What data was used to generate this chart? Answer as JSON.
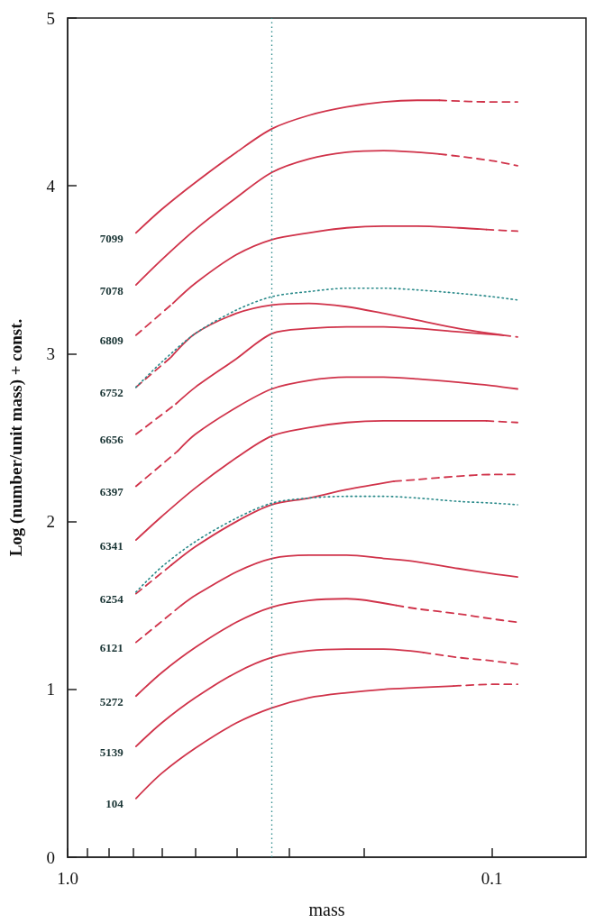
{
  "chart_data": {
    "type": "line",
    "xlabel": "mass",
    "ylabel": "Log (number/unit mass) + const.",
    "xlim": [
      1.0,
      0.06
    ],
    "log": "x",
    "xticks": [
      {
        "value": 1,
        "label": "1.0"
      },
      {
        "value": 0.9,
        "label": null
      },
      {
        "value": 0.8,
        "label": null
      },
      {
        "value": 0.7,
        "label": null
      },
      {
        "value": 0.6,
        "label": null
      },
      {
        "value": 0.5,
        "label": null
      },
      {
        "value": 0.4,
        "label": null
      },
      {
        "value": 0.3,
        "label": null
      },
      {
        "value": 0.2,
        "label": null
      },
      {
        "value": 0.1,
        "label": "0.1"
      }
    ],
    "ylim": [
      0,
      5
    ],
    "yticks": [
      0,
      1,
      2,
      3,
      4,
      5
    ],
    "grid": false,
    "legend": false,
    "marker": "none",
    "ref_lines": [
      {
        "axis": "x",
        "value": 0.33,
        "color": "#2a8a8a",
        "line_style": "dotted"
      }
    ],
    "series": [
      {
        "name": "7099",
        "color": "#d0334a",
        "line_style": "solid",
        "x": [
          0.69,
          0.6,
          0.5,
          0.4,
          0.33,
          0.27,
          0.22,
          0.18,
          0.15,
          0.133
        ],
        "values": [
          3.72,
          3.86,
          4.02,
          4.2,
          4.34,
          4.42,
          4.47,
          4.5,
          4.51,
          4.51
        ]
      },
      {
        "color": "#d0334a",
        "line_style": "dashed",
        "x": [
          0.133,
          0.1,
          0.087
        ],
        "values": [
          4.51,
          4.5,
          4.5
        ]
      },
      {
        "name": "7078",
        "color": "#d0334a",
        "line_style": "solid",
        "x": [
          0.69,
          0.6,
          0.5,
          0.4,
          0.33,
          0.27,
          0.22,
          0.18,
          0.15,
          0.133
        ],
        "values": [
          3.41,
          3.56,
          3.74,
          3.93,
          4.08,
          4.16,
          4.2,
          4.21,
          4.2,
          4.19
        ]
      },
      {
        "color": "#d0334a",
        "line_style": "dashed",
        "x": [
          0.133,
          0.1,
          0.087
        ],
        "values": [
          4.19,
          4.15,
          4.12
        ]
      },
      {
        "name": "6809",
        "color": "#d0334a",
        "line_style": "dashed",
        "x": [
          0.69,
          0.565
        ],
        "values": [
          3.11,
          3.3
        ]
      },
      {
        "color": "#d0334a",
        "line_style": "solid",
        "x": [
          0.565,
          0.5,
          0.4,
          0.33,
          0.27,
          0.22,
          0.18,
          0.15,
          0.12,
          0.103
        ],
        "values": [
          3.3,
          3.42,
          3.59,
          3.68,
          3.72,
          3.75,
          3.76,
          3.76,
          3.75,
          3.74
        ]
      },
      {
        "color": "#d0334a",
        "line_style": "dashed",
        "x": [
          0.103,
          0.087
        ],
        "values": [
          3.74,
          3.73
        ]
      },
      {
        "color": "#2a8a8a",
        "line_style": "dotted",
        "x": [
          0.69,
          0.6,
          0.5,
          0.4,
          0.33,
          0.27,
          0.22,
          0.18,
          0.15,
          0.12,
          0.1,
          0.087
        ],
        "values": [
          2.8,
          2.95,
          3.12,
          3.26,
          3.34,
          3.37,
          3.39,
          3.39,
          3.38,
          3.36,
          3.34,
          3.32
        ]
      },
      {
        "name": "6752",
        "color": "#d0334a",
        "line_style": "dashed",
        "x": [
          0.69,
          0.57
        ],
        "values": [
          2.8,
          2.98
        ]
      },
      {
        "color": "#d0334a",
        "line_style": "solid",
        "x": [
          0.57,
          0.5,
          0.4,
          0.33,
          0.27,
          0.22,
          0.18,
          0.15,
          0.12,
          0.094
        ],
        "values": [
          2.98,
          3.12,
          3.24,
          3.29,
          3.3,
          3.28,
          3.24,
          3.2,
          3.15,
          3.11
        ]
      },
      {
        "color": "#d0334a",
        "line_style": "dashed",
        "x": [
          0.094,
          0.087
        ],
        "values": [
          3.11,
          3.1
        ]
      },
      {
        "name": "6656",
        "color": "#d0334a",
        "line_style": "dashed",
        "x": [
          0.69,
          0.556
        ],
        "values": [
          2.52,
          2.7
        ]
      },
      {
        "color": "#d0334a",
        "line_style": "solid",
        "x": [
          0.556,
          0.5,
          0.4,
          0.33,
          0.27,
          0.22,
          0.18,
          0.15,
          0.12,
          0.094
        ],
        "values": [
          2.7,
          2.8,
          2.97,
          3.12,
          3.15,
          3.16,
          3.16,
          3.15,
          3.13,
          3.11
        ]
      },
      {
        "name": "6397",
        "color": "#d0334a",
        "line_style": "dashed",
        "x": [
          0.69,
          0.55
        ],
        "values": [
          2.21,
          2.42
        ]
      },
      {
        "color": "#d0334a",
        "line_style": "solid",
        "x": [
          0.55,
          0.5,
          0.4,
          0.33,
          0.27,
          0.22,
          0.18,
          0.15,
          0.12,
          0.1,
          0.087
        ],
        "values": [
          2.42,
          2.52,
          2.68,
          2.79,
          2.84,
          2.86,
          2.86,
          2.85,
          2.83,
          2.81,
          2.79
        ]
      },
      {
        "name": "6341",
        "color": "#d0334a",
        "line_style": "solid",
        "x": [
          0.69,
          0.6,
          0.5,
          0.4,
          0.33,
          0.27,
          0.22,
          0.18,
          0.15,
          0.12,
          0.103
        ],
        "values": [
          1.89,
          2.03,
          2.2,
          2.38,
          2.51,
          2.56,
          2.59,
          2.6,
          2.6,
          2.6,
          2.6
        ]
      },
      {
        "color": "#d0334a",
        "line_style": "dashed",
        "x": [
          0.103,
          0.087
        ],
        "values": [
          2.6,
          2.59
        ]
      },
      {
        "color": "#2a8a8a",
        "line_style": "dotted",
        "x": [
          0.69,
          0.6,
          0.5,
          0.4,
          0.33,
          0.27,
          0.22,
          0.18,
          0.15,
          0.12,
          0.1,
          0.087
        ],
        "values": [
          1.58,
          1.73,
          1.88,
          2.02,
          2.11,
          2.14,
          2.15,
          2.15,
          2.14,
          2.12,
          2.11,
          2.1
        ]
      },
      {
        "name": "6254",
        "color": "#d0334a",
        "line_style": "dashed",
        "x": [
          0.69,
          0.57
        ],
        "values": [
          1.57,
          1.74
        ]
      },
      {
        "color": "#d0334a",
        "line_style": "solid",
        "x": [
          0.57,
          0.5,
          0.4,
          0.33,
          0.27,
          0.22,
          0.17
        ],
        "values": [
          1.74,
          1.85,
          2.0,
          2.1,
          2.14,
          2.19,
          2.24
        ]
      },
      {
        "color": "#d0334a",
        "line_style": "dashed",
        "x": [
          0.17,
          0.15,
          0.12,
          0.1,
          0.087
        ],
        "values": [
          2.24,
          2.25,
          2.27,
          2.28,
          2.28
        ]
      },
      {
        "name": "6121",
        "color": "#d0334a",
        "line_style": "dashed",
        "x": [
          0.69,
          0.54
        ],
        "values": [
          1.28,
          1.5
        ]
      },
      {
        "color": "#d0334a",
        "line_style": "solid",
        "x": [
          0.54,
          0.5,
          0.4,
          0.33,
          0.27,
          0.22,
          0.18,
          0.15,
          0.12,
          0.1,
          0.087
        ],
        "values": [
          1.5,
          1.56,
          1.7,
          1.78,
          1.8,
          1.8,
          1.78,
          1.76,
          1.72,
          1.69,
          1.67
        ]
      },
      {
        "name": "5272",
        "color": "#d0334a",
        "line_style": "solid",
        "x": [
          0.69,
          0.6,
          0.5,
          0.4,
          0.33,
          0.27,
          0.22,
          0.168
        ],
        "values": [
          0.96,
          1.1,
          1.25,
          1.4,
          1.49,
          1.53,
          1.54,
          1.5
        ]
      },
      {
        "color": "#d0334a",
        "line_style": "dashed",
        "x": [
          0.168,
          0.15,
          0.12,
          0.1,
          0.087
        ],
        "values": [
          1.5,
          1.48,
          1.45,
          1.42,
          1.4
        ]
      },
      {
        "name": "5139",
        "color": "#d0334a",
        "line_style": "solid",
        "x": [
          0.69,
          0.6,
          0.5,
          0.4,
          0.33,
          0.27,
          0.22,
          0.18,
          0.145
        ],
        "values": [
          0.66,
          0.8,
          0.95,
          1.1,
          1.19,
          1.23,
          1.24,
          1.24,
          1.22
        ]
      },
      {
        "color": "#d0334a",
        "line_style": "dashed",
        "x": [
          0.145,
          0.12,
          0.1,
          0.087
        ],
        "values": [
          1.22,
          1.19,
          1.17,
          1.15
        ]
      },
      {
        "name": "104",
        "color": "#d0334a",
        "line_style": "solid",
        "x": [
          0.69,
          0.6,
          0.5,
          0.4,
          0.33,
          0.27,
          0.22,
          0.18,
          0.15,
          0.123
        ],
        "values": [
          0.35,
          0.5,
          0.65,
          0.8,
          0.89,
          0.95,
          0.98,
          1.0,
          1.01,
          1.02
        ]
      },
      {
        "color": "#d0334a",
        "line_style": "dashed",
        "x": [
          0.123,
          0.1,
          0.087
        ],
        "values": [
          1.02,
          1.03,
          1.03
        ]
      }
    ]
  }
}
